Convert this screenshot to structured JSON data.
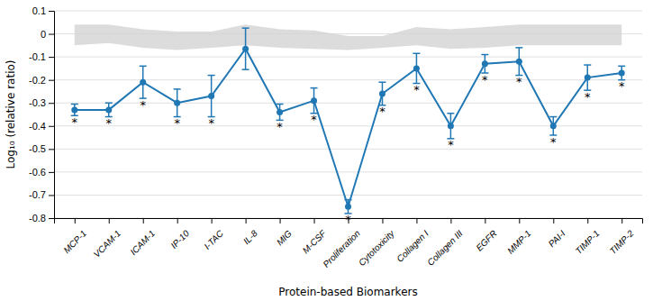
{
  "chart_data": {
    "type": "line",
    "categories": [
      "MCP-1",
      "VCAM-1",
      "ICAM-1",
      "IP-10",
      "I-TAC",
      "IL-8",
      "MIG",
      "M-CSF",
      "Proliferation",
      "Cytotoxicity",
      "Collagen I",
      "Collagen III",
      "EGFR",
      "MMP-1",
      "PAI-I",
      "TIMP-1",
      "TIMP-2"
    ],
    "values": [
      -0.33,
      -0.33,
      -0.21,
      -0.3,
      -0.27,
      -0.065,
      -0.34,
      -0.29,
      -0.75,
      -0.26,
      -0.15,
      -0.4,
      -0.13,
      -0.12,
      -0.4,
      -0.19,
      -0.17
    ],
    "errors": [
      0.025,
      0.03,
      0.07,
      0.06,
      0.09,
      0.09,
      0.035,
      0.055,
      0.03,
      0.05,
      0.065,
      0.055,
      0.04,
      0.06,
      0.04,
      0.055,
      0.03
    ],
    "significant": [
      true,
      true,
      true,
      true,
      true,
      false,
      true,
      true,
      true,
      true,
      true,
      true,
      true,
      true,
      true,
      true,
      true
    ],
    "significance_label": "*",
    "band_upper": [
      0.04,
      0.04,
      0.02,
      0.01,
      0.01,
      0.04,
      0.02,
      0.015,
      -0.01,
      -0.01,
      0.03,
      0.02,
      0.03,
      0.04,
      0.04,
      0.04,
      0.04
    ],
    "band_lower": [
      -0.05,
      -0.04,
      -0.06,
      -0.07,
      -0.06,
      -0.05,
      -0.06,
      -0.065,
      -0.07,
      -0.06,
      -0.05,
      -0.065,
      -0.06,
      -0.05,
      -0.05,
      -0.05,
      -0.05
    ],
    "ylabel": "Log₁₀ (relative ratio)",
    "xlabel": "Protein-based Biomarkers",
    "ylim": [
      -0.8,
      0.1
    ],
    "yticks": [
      0.1,
      0,
      -0.1,
      -0.2,
      -0.3,
      -0.4,
      -0.5,
      -0.6,
      -0.7,
      -0.8
    ],
    "grid": true,
    "marker": "circle"
  }
}
